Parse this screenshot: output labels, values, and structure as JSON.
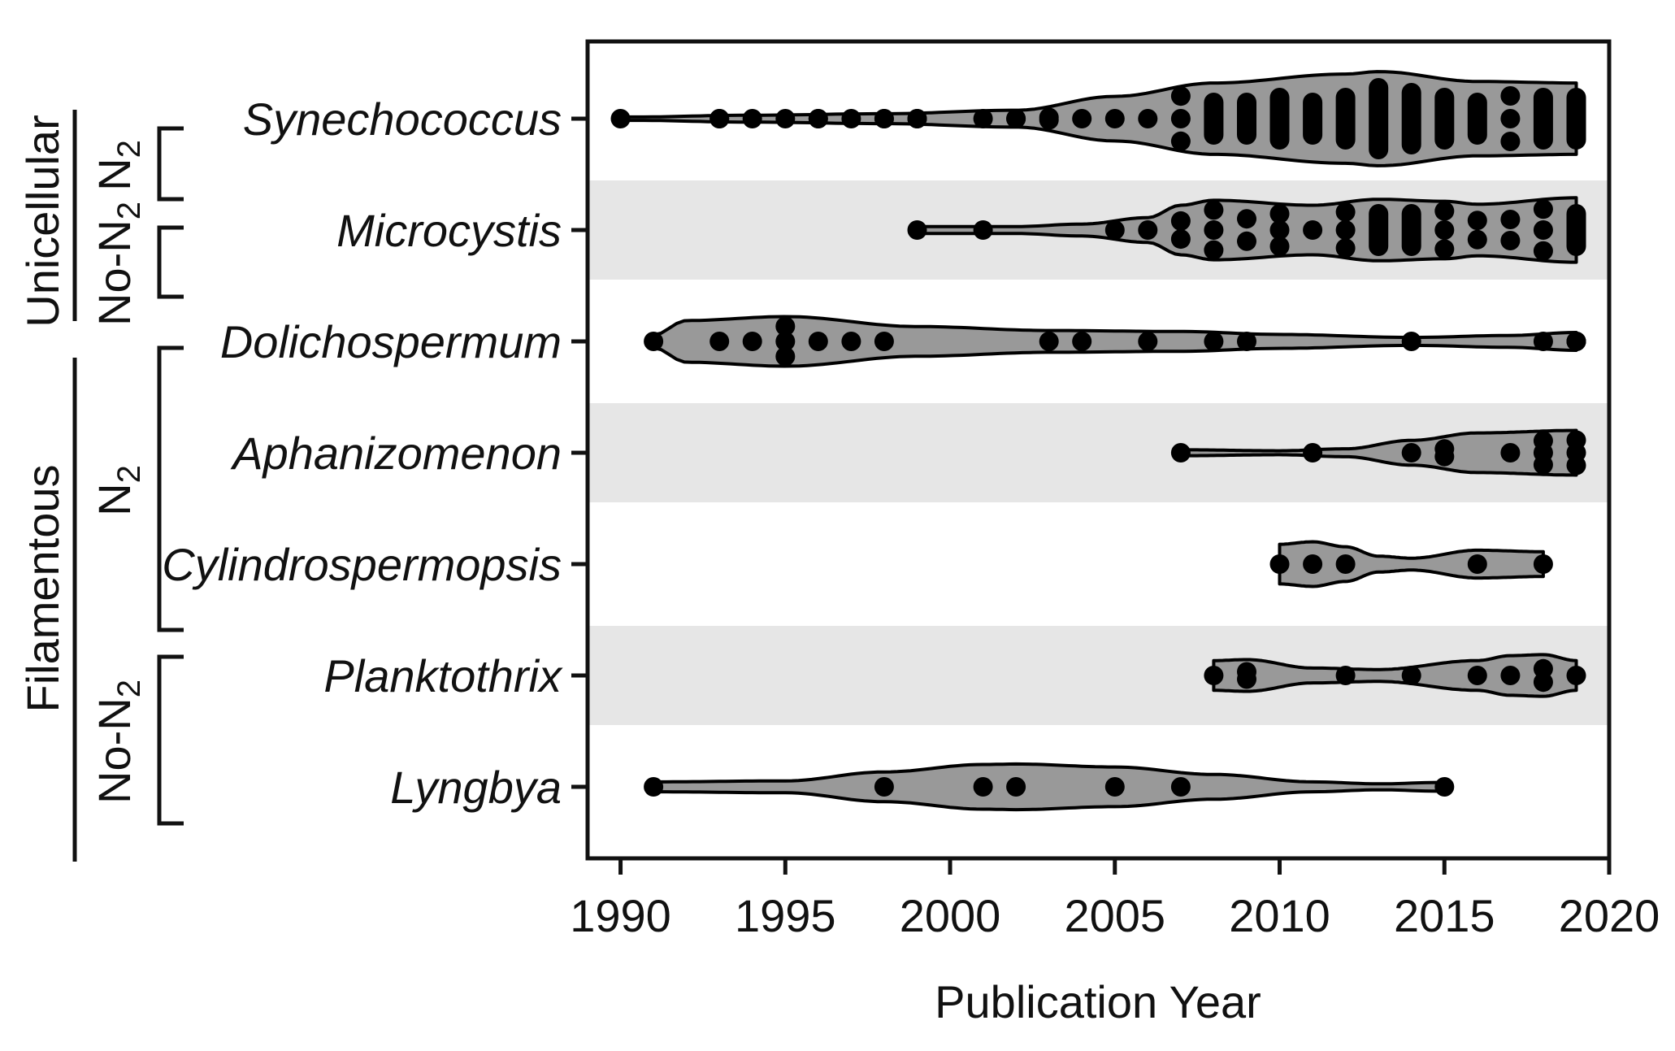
{
  "chart_data": {
    "type": "violin",
    "xlabel": "Publication Year",
    "xlim": [
      1989,
      2020
    ],
    "xticks": [
      "1990",
      "1995",
      "2000",
      "2005",
      "2010",
      "2015",
      "2020"
    ],
    "colors": {
      "violin_fill": "#999999",
      "band": "#e6e6e6",
      "point": "#000000",
      "ink": "#111111"
    },
    "groups": [
      {
        "label": "Unicellular",
        "subgroups": [
          {
            "label": "N",
            "subscript": "2",
            "members": [
              "Synechococcus"
            ]
          },
          {
            "label": "No-N",
            "subscript": "2",
            "members": [
              "Microcystis"
            ]
          }
        ]
      },
      {
        "label": "Filamentous",
        "subgroups": [
          {
            "label": "N",
            "subscript": "2",
            "members": [
              "Dolichospermum",
              "Aphanizomenon",
              "Cylindrospermopsis"
            ]
          },
          {
            "label": "No-N",
            "subscript": "2",
            "members": [
              "Planktothrix",
              "Lyngbya"
            ]
          }
        ]
      }
    ],
    "series": [
      {
        "name": "Synechococcus",
        "shaded": false,
        "range": [
          1990,
          2019
        ],
        "width_profile": [
          [
            1990,
            0.03
          ],
          [
            1994,
            0.07
          ],
          [
            1998,
            0.1
          ],
          [
            2002,
            0.17
          ],
          [
            2005,
            0.45
          ],
          [
            2008,
            0.72
          ],
          [
            2012,
            0.9
          ],
          [
            2013,
            0.95
          ],
          [
            2016,
            0.75
          ],
          [
            2019,
            0.72
          ]
        ],
        "points": [
          [
            1990,
            1
          ],
          [
            1993,
            2
          ],
          [
            1994,
            1
          ],
          [
            1995,
            1
          ],
          [
            1996,
            2
          ],
          [
            1997,
            1
          ],
          [
            1998,
            2
          ],
          [
            1999,
            2
          ],
          [
            2001,
            1
          ],
          [
            2002,
            2
          ],
          [
            2003,
            2
          ],
          [
            2004,
            1
          ],
          [
            2005,
            1
          ],
          [
            2006,
            1
          ],
          [
            2007,
            3
          ],
          [
            2008,
            4
          ],
          [
            2009,
            4
          ],
          [
            2010,
            5
          ],
          [
            2011,
            4
          ],
          [
            2012,
            5
          ],
          [
            2013,
            7
          ],
          [
            2014,
            6
          ],
          [
            2015,
            5
          ],
          [
            2016,
            4
          ],
          [
            2017,
            3
          ],
          [
            2018,
            5
          ],
          [
            2019,
            5
          ]
        ]
      },
      {
        "name": "Microcystis",
        "shaded": true,
        "range": [
          1999,
          2019
        ],
        "width_profile": [
          [
            1999,
            0.07
          ],
          [
            2002,
            0.07
          ],
          [
            2004,
            0.12
          ],
          [
            2006,
            0.25
          ],
          [
            2007,
            0.5
          ],
          [
            2008,
            0.6
          ],
          [
            2011,
            0.5
          ],
          [
            2013,
            0.62
          ],
          [
            2015,
            0.58
          ],
          [
            2016,
            0.52
          ],
          [
            2019,
            0.65
          ]
        ],
        "points": [
          [
            1999,
            1
          ],
          [
            2001,
            1
          ],
          [
            2005,
            1
          ],
          [
            2006,
            1
          ],
          [
            2007,
            2
          ],
          [
            2008,
            3
          ],
          [
            2009,
            2
          ],
          [
            2010,
            3
          ],
          [
            2011,
            1
          ],
          [
            2012,
            3
          ],
          [
            2013,
            4
          ],
          [
            2014,
            4
          ],
          [
            2015,
            3
          ],
          [
            2016,
            2
          ],
          [
            2017,
            2
          ],
          [
            2018,
            3
          ],
          [
            2019,
            4
          ]
        ]
      },
      {
        "name": "Dolichospermum",
        "shaded": false,
        "range": [
          1991,
          2019
        ],
        "width_profile": [
          [
            1991,
            0.13
          ],
          [
            1992,
            0.42
          ],
          [
            1995,
            0.5
          ],
          [
            1999,
            0.3
          ],
          [
            2003,
            0.22
          ],
          [
            2007,
            0.2
          ],
          [
            2010,
            0.14
          ],
          [
            2014,
            0.08
          ],
          [
            2017,
            0.12
          ],
          [
            2019,
            0.18
          ]
        ],
        "points": [
          [
            1991,
            1
          ],
          [
            1993,
            1
          ],
          [
            1994,
            1
          ],
          [
            1995,
            3
          ],
          [
            1996,
            1
          ],
          [
            1997,
            1
          ],
          [
            1998,
            1
          ],
          [
            2003,
            1
          ],
          [
            2004,
            1
          ],
          [
            2006,
            1
          ],
          [
            2008,
            1
          ],
          [
            2009,
            1
          ],
          [
            2014,
            1
          ],
          [
            2018,
            1
          ],
          [
            2019,
            3
          ]
        ]
      },
      {
        "name": "Aphanizomenon",
        "shaded": true,
        "range": [
          2007,
          2019
        ],
        "width_profile": [
          [
            2007,
            0.06
          ],
          [
            2010,
            0.04
          ],
          [
            2012,
            0.08
          ],
          [
            2014,
            0.25
          ],
          [
            2016,
            0.4
          ],
          [
            2019,
            0.45
          ]
        ],
        "points": [
          [
            2007,
            1
          ],
          [
            2011,
            1
          ],
          [
            2014,
            1
          ],
          [
            2015,
            2
          ],
          [
            2017,
            1
          ],
          [
            2018,
            3
          ],
          [
            2019,
            3
          ]
        ]
      },
      {
        "name": "Cylindrospermopsis",
        "shaded": false,
        "range": [
          2010,
          2018
        ],
        "width_profile": [
          [
            2010,
            0.4
          ],
          [
            2011,
            0.45
          ],
          [
            2012,
            0.35
          ],
          [
            2013,
            0.16
          ],
          [
            2014,
            0.12
          ],
          [
            2016,
            0.28
          ],
          [
            2018,
            0.25
          ]
        ],
        "points": [
          [
            2010,
            1
          ],
          [
            2011,
            1
          ],
          [
            2012,
            1
          ],
          [
            2016,
            1
          ],
          [
            2018,
            1
          ]
        ]
      },
      {
        "name": "Planktothrix",
        "shaded": true,
        "range": [
          2008,
          2019
        ],
        "width_profile": [
          [
            2008,
            0.3
          ],
          [
            2009,
            0.32
          ],
          [
            2011,
            0.15
          ],
          [
            2013,
            0.12
          ],
          [
            2016,
            0.3
          ],
          [
            2017,
            0.4
          ],
          [
            2018,
            0.42
          ],
          [
            2019,
            0.3
          ]
        ],
        "points": [
          [
            2008,
            1
          ],
          [
            2009,
            2
          ],
          [
            2012,
            1
          ],
          [
            2014,
            1
          ],
          [
            2016,
            1
          ],
          [
            2017,
            1
          ],
          [
            2018,
            2
          ],
          [
            2019,
            1
          ]
        ]
      },
      {
        "name": "Lyngbya",
        "shaded": false,
        "range": [
          1991,
          2015
        ],
        "width_profile": [
          [
            1991,
            0.1
          ],
          [
            1995,
            0.12
          ],
          [
            1998,
            0.3
          ],
          [
            2001,
            0.45
          ],
          [
            2002,
            0.46
          ],
          [
            2005,
            0.4
          ],
          [
            2008,
            0.25
          ],
          [
            2011,
            0.1
          ],
          [
            2013,
            0.06
          ],
          [
            2015,
            0.09
          ]
        ],
        "points": [
          [
            1991,
            1
          ],
          [
            1998,
            1
          ],
          [
            2001,
            1
          ],
          [
            2002,
            1
          ],
          [
            2005,
            1
          ],
          [
            2007,
            1
          ],
          [
            2015,
            1
          ]
        ]
      }
    ]
  }
}
